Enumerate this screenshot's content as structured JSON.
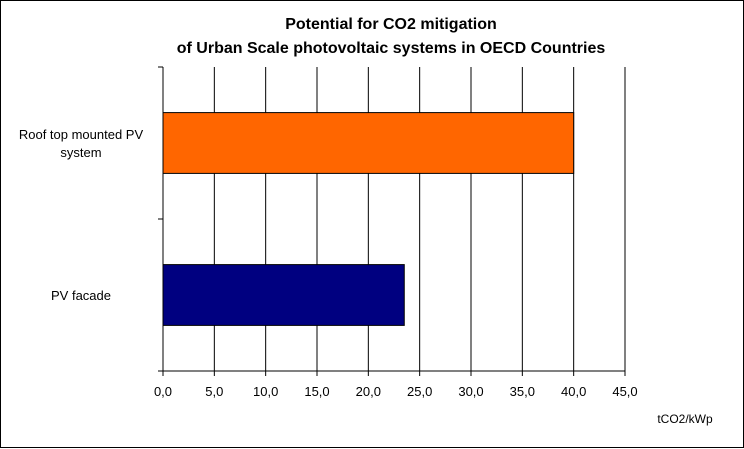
{
  "chart_data": {
    "type": "bar",
    "orientation": "horizontal",
    "title_lines": [
      "Potential for CO2 mitigation",
      "of Urban Scale photovoltaic systems in OECD Countries"
    ],
    "categories": [
      {
        "label_lines": [
          "Roof top mounted PV",
          "system"
        ],
        "value": 40.0,
        "color": "#ff6600"
      },
      {
        "label_lines": [
          "PV facade"
        ],
        "value": 23.5,
        "color": "#000080"
      }
    ],
    "x_ticks": [
      "0,0",
      "5,0",
      "10,0",
      "15,0",
      "20,0",
      "25,0",
      "30,0",
      "35,0",
      "40,0",
      "45,0"
    ],
    "xlim": [
      0,
      45
    ],
    "x_unit": "tCO2/kWp",
    "grid": "vertical"
  }
}
